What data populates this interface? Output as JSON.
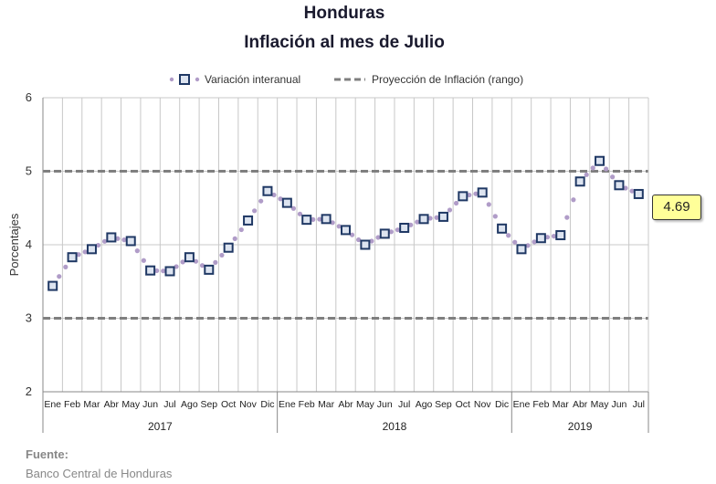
{
  "header": {
    "title": "Honduras",
    "subtitle": "Inflación al mes de Julio"
  },
  "source": {
    "label": "Fuente:",
    "text": "Banco Central de Honduras"
  },
  "callout": "4.69",
  "colors": {
    "marker_border": "#1f3864",
    "marker_fill": "#dde4f0",
    "dotted_line": "#b09cc8",
    "band_line": "#7f7f7f",
    "grid": "#c8c8c8",
    "callout_bg": "#ffff99"
  },
  "chart_data": {
    "type": "line",
    "title": "Inflación al mes de Julio",
    "xlabel": "",
    "ylabel": "Porcentajes",
    "ylim": [
      2,
      6
    ],
    "yticks": [
      2,
      3,
      4,
      5,
      6
    ],
    "grid": true,
    "legend_position": "top",
    "categories": [
      "Ene",
      "Feb",
      "Mar",
      "Abr",
      "May",
      "Jun",
      "Jul",
      "Ago",
      "Sep",
      "Oct",
      "Nov",
      "Dic",
      "Ene",
      "Feb",
      "Mar",
      "Abr",
      "May",
      "Jun",
      "Jul",
      "Ago",
      "Sep",
      "Oct",
      "Nov",
      "Dic",
      "Ene",
      "Feb",
      "Mar",
      "Abr",
      "May",
      "Jun",
      "Jul"
    ],
    "year_groups": [
      {
        "label": "2017",
        "count": 12
      },
      {
        "label": "2018",
        "count": 12
      },
      {
        "label": "2019",
        "count": 7
      }
    ],
    "series": [
      {
        "name": "Variación interanual",
        "values": [
          3.44,
          3.83,
          3.94,
          4.1,
          4.05,
          3.65,
          3.64,
          3.83,
          3.66,
          3.96,
          4.33,
          4.73,
          4.57,
          4.34,
          4.35,
          4.2,
          4.0,
          4.15,
          4.23,
          4.35,
          4.38,
          4.66,
          4.71,
          4.22,
          3.94,
          4.09,
          4.13,
          4.86,
          5.14,
          4.81,
          4.69
        ]
      },
      {
        "name": "Proyección de Inflación (rango)",
        "values_lower": 3,
        "values_upper": 5
      }
    ]
  }
}
